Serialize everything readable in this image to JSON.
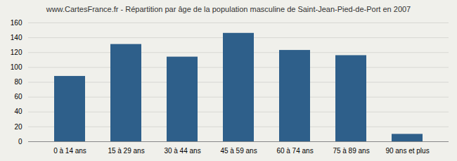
{
  "chart_data": {
    "type": "bar",
    "title": "www.CartesFrance.fr - Répartition par âge de la population masculine de Saint-Jean-Pied-de-Port en 2007",
    "categories": [
      "0 à 14 ans",
      "15 à 29 ans",
      "30 à 44 ans",
      "45 à 59 ans",
      "60 à 74 ans",
      "75 à 89 ans",
      "90 ans et plus"
    ],
    "values": [
      88,
      131,
      114,
      146,
      123,
      116,
      10
    ],
    "color": "#2e5f8a",
    "ylim": [
      0,
      160
    ],
    "yticks": [
      0,
      20,
      40,
      60,
      80,
      100,
      120,
      140,
      160
    ],
    "grid": true
  }
}
